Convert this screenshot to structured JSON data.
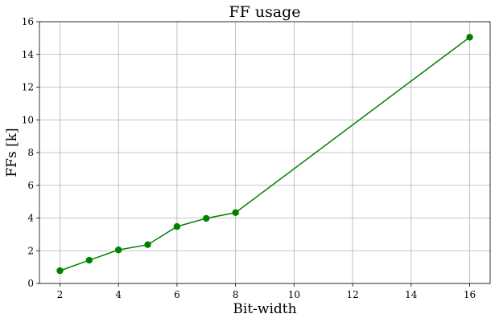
{
  "chart_data": {
    "type": "line",
    "title": "FF usage",
    "xlabel": "Bit-width",
    "ylabel": "FFs [k]",
    "xlim": [
      1.3,
      16.7
    ],
    "ylim": [
      0,
      16
    ],
    "xticks": [
      2,
      4,
      6,
      8,
      10,
      12,
      14,
      16
    ],
    "yticks": [
      0,
      2,
      4,
      6,
      8,
      10,
      12,
      14,
      16
    ],
    "grid": true,
    "series": [
      {
        "name": "FF usage",
        "color": "#008000",
        "marker": "circle",
        "x": [
          2,
          3,
          4,
          5,
          6,
          7,
          8,
          16
        ],
        "y": [
          0.78,
          1.42,
          2.05,
          2.37,
          3.48,
          3.98,
          4.33,
          15.05
        ]
      }
    ]
  }
}
